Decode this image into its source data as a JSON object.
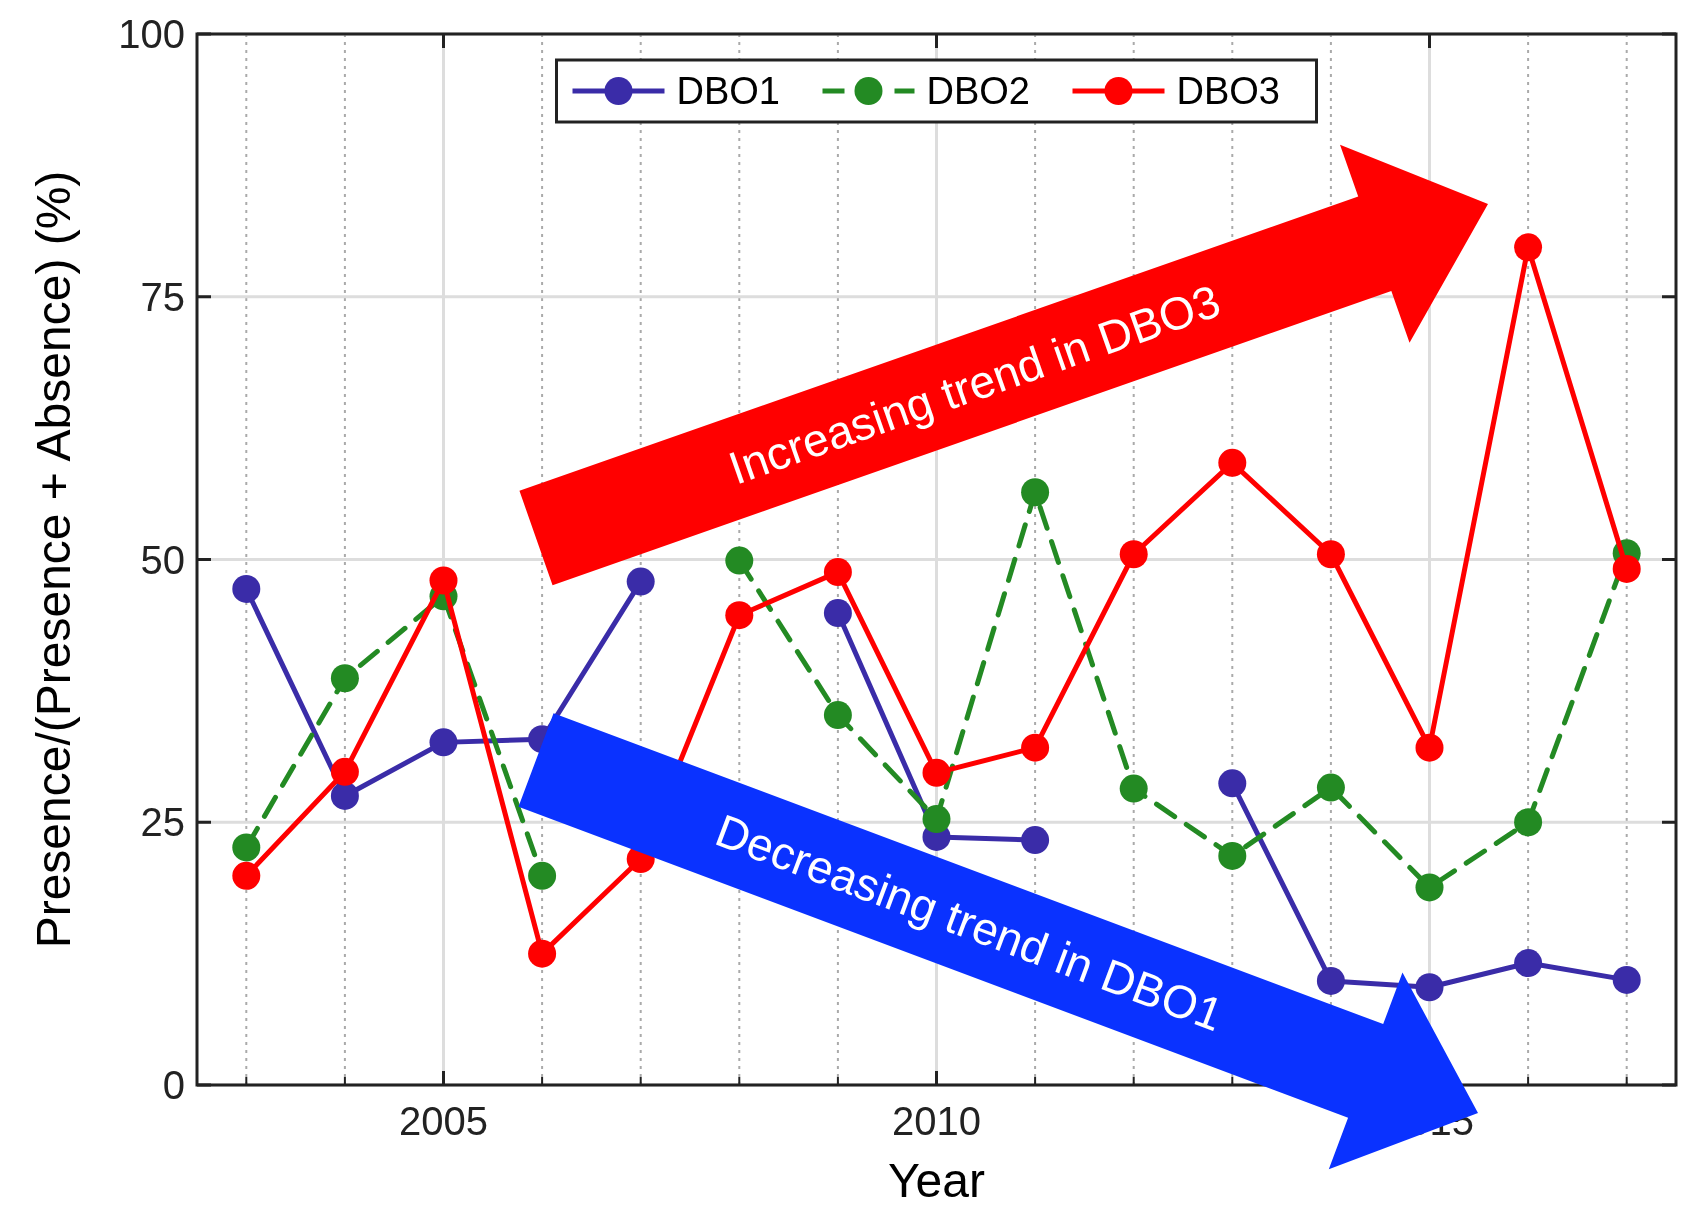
{
  "chart_data": {
    "type": "line",
    "xlabel": "Year",
    "ylabel": "Presence/(Presence + Absence) (%)",
    "x": [
      2003,
      2004,
      2005,
      2006,
      2007,
      2008,
      2009,
      2010,
      2011,
      2012,
      2013,
      2014,
      2015,
      2016,
      2017
    ],
    "series": [
      {
        "name": "DBO1",
        "color": "#3a2ca8",
        "line_style": "solid",
        "values": [
          47.2,
          27.5,
          32.6,
          32.9,
          47.9,
          null,
          44.9,
          23.6,
          23.3,
          null,
          28.7,
          9.9,
          9.3,
          11.6,
          10
        ]
      },
      {
        "name": "DBO2",
        "color": "#238a23",
        "line_style": "dashed",
        "values": [
          22.6,
          38.7,
          46.5,
          19.9,
          null,
          49.9,
          35.2,
          25.3,
          56.4,
          28.2,
          21.8,
          28.3,
          18.8,
          25,
          50.6
        ]
      },
      {
        "name": "DBO3",
        "color": "#ff0000",
        "line_style": "solid",
        "values": [
          19.9,
          29.8,
          48,
          12.5,
          21.5,
          44.7,
          48.8,
          29.7,
          32.1,
          50.5,
          59.2,
          50.5,
          32.1,
          79.7,
          49.1
        ]
      }
    ],
    "xlim": [
      2002.5,
      2017.5
    ],
    "xticks": [
      2005,
      2010,
      2015
    ],
    "ylim": [
      0,
      100
    ],
    "yticks": [
      0,
      25,
      50,
      75,
      100
    ],
    "grid": true,
    "legend": "top",
    "marker": "circle",
    "annotations": [
      "Increasing trend in DBO3",
      "Decreasing trend in DBO1"
    ]
  }
}
